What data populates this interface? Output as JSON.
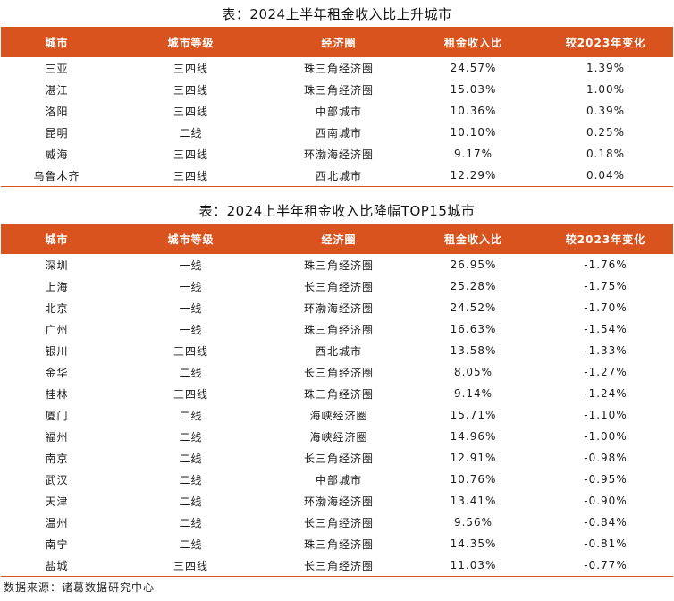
{
  "table1": {
    "title": "表：2024上半年租金收入比上升城市",
    "headers": [
      "城市",
      "城市等级",
      "经济圈",
      "租金收入比",
      "较2023年变化"
    ],
    "rows": [
      [
        "三亚",
        "三四线",
        "珠三角经济圈",
        "24.57%",
        "1.39%"
      ],
      [
        "湛江",
        "三四线",
        "珠三角经济圈",
        "15.03%",
        "1.00%"
      ],
      [
        "洛阳",
        "三四线",
        "中部城市",
        "10.36%",
        "0.39%"
      ],
      [
        "昆明",
        "二线",
        "西南城市",
        "10.10%",
        "0.25%"
      ],
      [
        "威海",
        "三四线",
        "环渤海经济圈",
        "9.17%",
        "0.18%"
      ],
      [
        "乌鲁木齐",
        "三四线",
        "西北城市",
        "12.29%",
        "0.04%"
      ]
    ]
  },
  "table2": {
    "title": "表：2024上半年租金收入比降幅TOP15城市",
    "headers": [
      "城市",
      "城市等级",
      "经济圈",
      "租金收入比",
      "较2023年变化"
    ],
    "rows": [
      [
        "深圳",
        "一线",
        "珠三角经济圈",
        "26.95%",
        "-1.76%"
      ],
      [
        "上海",
        "一线",
        "长三角经济圈",
        "25.28%",
        "-1.75%"
      ],
      [
        "北京",
        "一线",
        "环渤海经济圈",
        "24.52%",
        "-1.70%"
      ],
      [
        "广州",
        "一线",
        "珠三角经济圈",
        "16.63%",
        "-1.54%"
      ],
      [
        "银川",
        "三四线",
        "西北城市",
        "13.58%",
        "-1.33%"
      ],
      [
        "金华",
        "二线",
        "长三角经济圈",
        "8.05%",
        "-1.27%"
      ],
      [
        "桂林",
        "三四线",
        "珠三角经济圈",
        "9.14%",
        "-1.24%"
      ],
      [
        "厦门",
        "二线",
        "海峡经济圈",
        "15.71%",
        "-1.10%"
      ],
      [
        "福州",
        "二线",
        "海峡经济圈",
        "14.96%",
        "-1.00%"
      ],
      [
        "南京",
        "二线",
        "长三角经济圈",
        "12.91%",
        "-0.98%"
      ],
      [
        "武汉",
        "二线",
        "中部城市",
        "10.76%",
        "-0.95%"
      ],
      [
        "天津",
        "二线",
        "环渤海经济圈",
        "13.41%",
        "-0.90%"
      ],
      [
        "温州",
        "二线",
        "长三角经济圈",
        "9.56%",
        "-0.84%"
      ],
      [
        "南宁",
        "二线",
        "珠三角经济圈",
        "14.35%",
        "-0.81%"
      ],
      [
        "盐城",
        "三四线",
        "长三角经济圈",
        "11.03%",
        "-0.77%"
      ]
    ]
  },
  "source": "数据来源：诸葛数据研究中心"
}
